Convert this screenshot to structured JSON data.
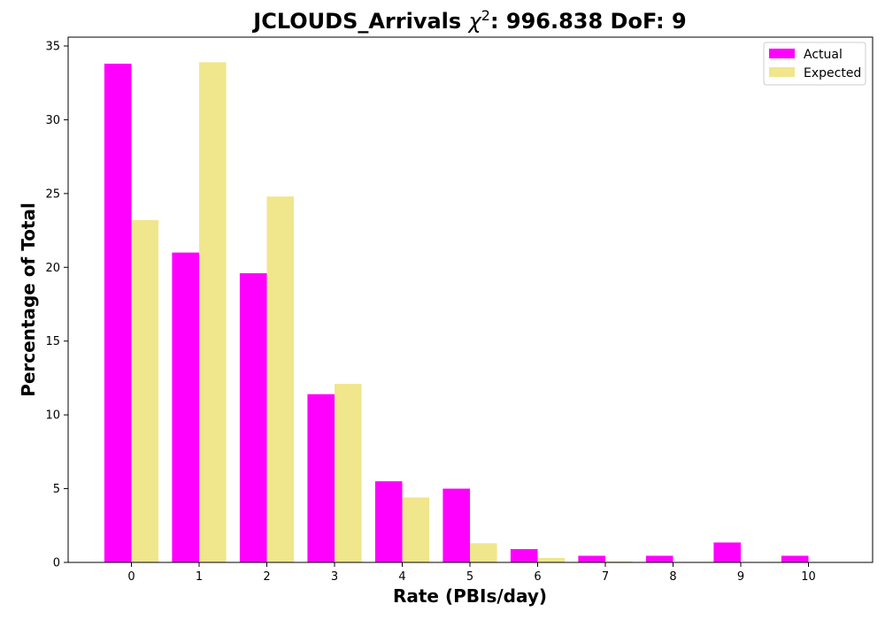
{
  "chart_data": {
    "type": "bar",
    "title_main": "JCLOUDS_Arrivals ",
    "title_chi": "χ",
    "title_sup": "2",
    "title_rest": ": 996.838 DoF: 9",
    "xlabel": "Rate (PBIs/day)",
    "ylabel": "Percentage of Total",
    "categories": [
      "0",
      "1",
      "2",
      "3",
      "4",
      "5",
      "6",
      "7",
      "8",
      "9",
      "10"
    ],
    "ylim": [
      0,
      35.6
    ],
    "yticks": [
      0,
      5,
      10,
      15,
      20,
      25,
      30,
      35
    ],
    "grid": false,
    "legend_position": "top-right",
    "series": [
      {
        "name": "Actual",
        "color": "#ff00ff",
        "values": [
          33.8,
          21.0,
          19.6,
          11.4,
          5.5,
          5.0,
          0.9,
          0.45,
          0.45,
          1.35,
          0.45
        ]
      },
      {
        "name": "Expected",
        "color": "#f0e68c",
        "values": [
          23.2,
          33.9,
          24.8,
          12.1,
          4.4,
          1.3,
          0.3,
          0.07,
          0.01,
          0.0,
          0.0
        ]
      }
    ]
  }
}
